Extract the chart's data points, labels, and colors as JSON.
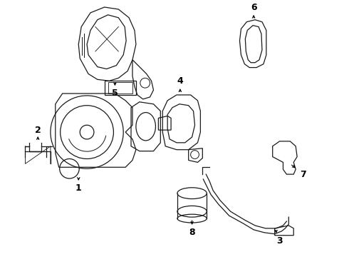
{
  "background_color": "#ffffff",
  "line_color": "#1a1a1a",
  "fig_width": 4.9,
  "fig_height": 3.6,
  "dpi": 100,
  "label_fontsize": 9,
  "lw": 0.9
}
